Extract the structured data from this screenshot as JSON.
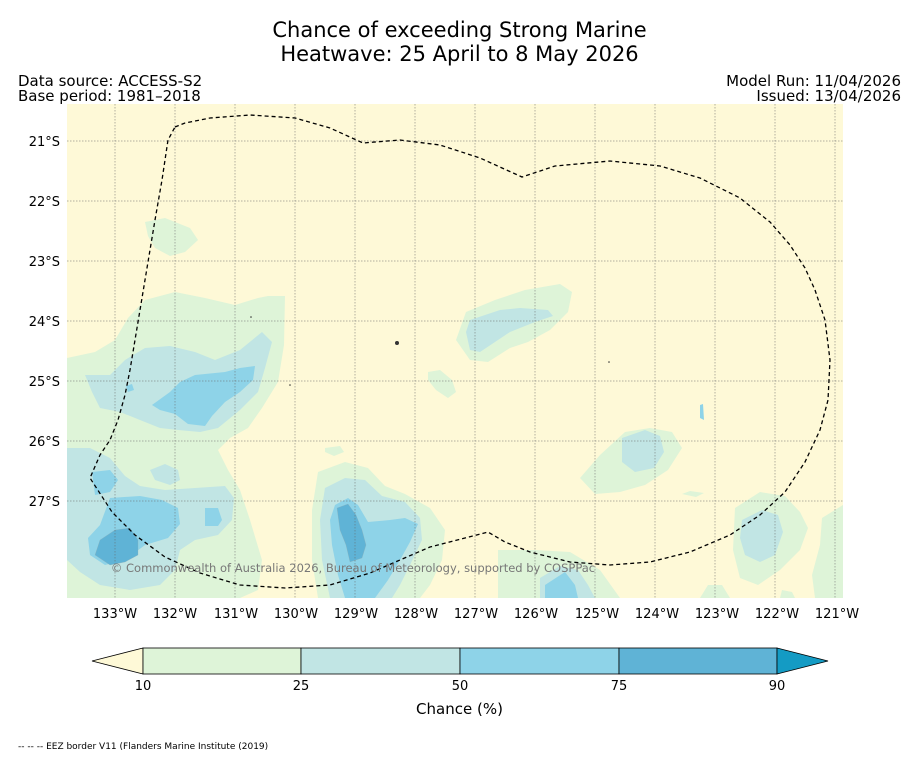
{
  "header": {
    "title_line1": "Chance of exceeding Strong Marine",
    "title_line2": "Heatwave: 25 April to 8 May 2026",
    "data_source": "Data source: ACCESS-S2",
    "base_period": "Base period: 1981–2018",
    "model_run": "Model Run: 11/04/2026",
    "issued": "Issued: 13/04/2026"
  },
  "map": {
    "latitude_labels": [
      "21°S",
      "22°S",
      "23°S",
      "24°S",
      "25°S",
      "26°S",
      "27°S"
    ],
    "longitude_labels": [
      "133°W",
      "132°W",
      "131°W",
      "130°W",
      "129°W",
      "128°W",
      "127°W",
      "126°W",
      "125°W",
      "124°W",
      "123°W",
      "122°W",
      "121°W"
    ],
    "copyright": "© Commonwealth of Australia 2026, Bureau of Meteorology, supported by COSPPac",
    "background_color": "#fef9d7"
  },
  "colorbar": {
    "ticks": [
      "10",
      "25",
      "50",
      "75",
      "90"
    ],
    "label": "Chance (%)",
    "colors": {
      "below_10": "#fef9d7",
      "c10_25": "#def4d8",
      "c25_50": "#c1e5e4",
      "c50_75": "#8ed3e8",
      "c75_90": "#5fb3d6",
      "above_90": "#149bc4"
    }
  },
  "footnote": "-- -- -- EEZ border V11 (Flanders Marine Institute (2019)"
}
